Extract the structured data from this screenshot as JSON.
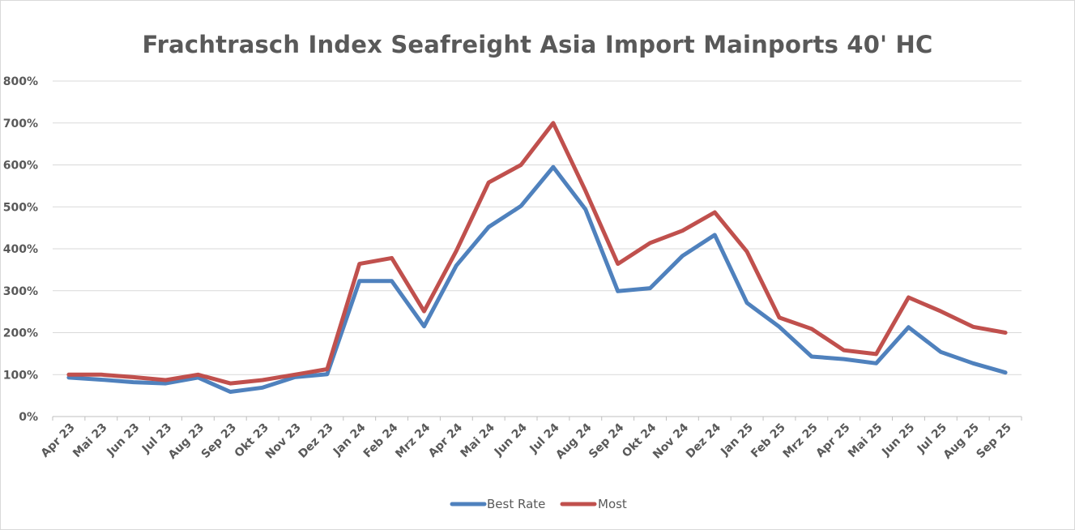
{
  "chart_data": {
    "type": "line",
    "title": "Frachtrasch Index Seafreight Asia Import Mainports 40' HC",
    "xlabel": "",
    "ylabel": "",
    "ylim": [
      0,
      800
    ],
    "y_ticks": [
      "0%",
      "100%",
      "200%",
      "300%",
      "400%",
      "500%",
      "600%",
      "700%",
      "800%"
    ],
    "grid": true,
    "legend_position": "bottom",
    "categories": [
      "Apr 23",
      "Mai 23",
      "Jun 23",
      "Jul 23",
      "Aug 23",
      "Sep 23",
      "Okt 23",
      "Nov 23",
      "Dez 23",
      "Jan 24",
      "Feb 24",
      "Mrz 24",
      "Apr 24",
      "Mai 24",
      "Jun 24",
      "Jul 24",
      "Aug 24",
      "Sep 24",
      "Okt 24",
      "Nov 24",
      "Dez 24",
      "Jan 25",
      "Feb 25",
      "Mrz 25",
      "Apr 25",
      "Mai 25",
      "Jun 25",
      "Jul 25",
      "Aug 25",
      "Sep 25"
    ],
    "series": [
      {
        "name": "Best Rate",
        "color": "#4f81bd",
        "values": [
          93,
          88,
          82,
          79,
          93,
          59,
          69,
          94,
          101,
          323,
          323,
          215,
          360,
          452,
          502,
          595,
          494,
          299,
          306,
          383,
          433,
          271,
          214,
          143,
          137,
          127,
          213,
          154,
          127,
          105
        ]
      },
      {
        "name": "Most",
        "color": "#c0504d",
        "values": [
          100,
          100,
          94,
          87,
          100,
          79,
          87,
          100,
          113,
          364,
          378,
          251,
          395,
          558,
          600,
          700,
          538,
          364,
          414,
          443,
          487,
          393,
          236,
          209,
          158,
          149,
          284,
          251,
          214,
          200
        ]
      }
    ]
  }
}
